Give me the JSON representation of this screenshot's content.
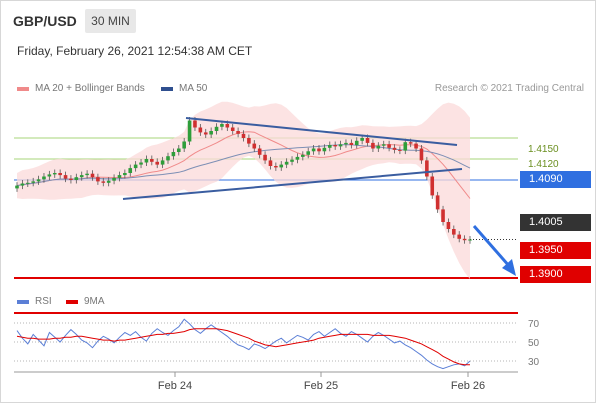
{
  "header": {
    "symbol": "GBP/USD",
    "timeframe": "30 MIN"
  },
  "timestamp": "Friday, February 26, 2021 12:54:38 AM CET",
  "legend": {
    "ma20": "MA 20 + Bollinger Bands",
    "ma50": "MA 50",
    "ma20_color": "#f08a8a",
    "ma50_color": "#2f4f8f"
  },
  "credit": "Research © 2021 Trading Central",
  "rsi_legend": {
    "rsi": "RSI",
    "ma": "9MA",
    "rsi_color": "#5b7fd6",
    "ma_color": "#e00000"
  },
  "levels": {
    "r1": "1.4150",
    "r2": "1.4120",
    "pivot": "1.4090",
    "last": "1.4005",
    "s1": "1.3950",
    "s2": "1.3900",
    "green": "#7dbf3a",
    "blue": "#2f6fe0",
    "red": "#e00000",
    "dark": "#333333"
  },
  "chart_data": {
    "type": "candlestick",
    "x_ticks": [
      "Feb 24",
      "Feb 25",
      "Feb 26"
    ],
    "price_levels": {
      "resistance": [
        1.415,
        1.412
      ],
      "pivot": 1.409,
      "last": 1.4005,
      "support": [
        1.395,
        1.39
      ]
    },
    "closes": [
      1.4082,
      1.4085,
      1.4086,
      1.4088,
      1.4091,
      1.4095,
      1.4098,
      1.41,
      1.4097,
      1.4092,
      1.409,
      1.4094,
      1.4097,
      1.4099,
      1.4094,
      1.4088,
      1.4086,
      1.4089,
      1.4093,
      1.4097,
      1.41,
      1.4107,
      1.4112,
      1.4115,
      1.412,
      1.4116,
      1.4112,
      1.4118,
      1.4124,
      1.413,
      1.4135,
      1.4145,
      1.4175,
      1.4165,
      1.4158,
      1.4155,
      1.416,
      1.4166,
      1.417,
      1.4165,
      1.416,
      1.4156,
      1.415,
      1.4142,
      1.4135,
      1.4126,
      1.4118,
      1.411,
      1.4108,
      1.4112,
      1.4116,
      1.4119,
      1.4123,
      1.4126,
      1.4131,
      1.4135,
      1.4131,
      1.4136,
      1.414,
      1.4138,
      1.4141,
      1.4143,
      1.414,
      1.4146,
      1.415,
      1.4143,
      1.4135,
      1.4139,
      1.4141,
      1.4136,
      1.4133,
      1.4132,
      1.4144,
      1.4142,
      1.4135,
      1.4118,
      1.4095,
      1.4068,
      1.4048,
      1.403,
      1.402,
      1.4012,
      1.4006,
      1.4004,
      1.4005
    ],
    "ma20_label": "MA 20 + Bollinger Bands",
    "ma50_label": "MA 50",
    "rsi": {
      "levels": [
        70,
        50,
        30
      ],
      "values": [
        62,
        54,
        48,
        58,
        52,
        46,
        60,
        55,
        50,
        57,
        63,
        58,
        52,
        49,
        44,
        51,
        56,
        53,
        49,
        55,
        60,
        57,
        61,
        55,
        51,
        59,
        64,
        60,
        57,
        62,
        66,
        74,
        69,
        63,
        59,
        64,
        68,
        64,
        60,
        56,
        51,
        47,
        45,
        42,
        48,
        46,
        43,
        47,
        51,
        54,
        49,
        53,
        57,
        55,
        52,
        58,
        61,
        56,
        60,
        64,
        59,
        56,
        61,
        58,
        54,
        50,
        56,
        60,
        57,
        53,
        49,
        51,
        47,
        44,
        40,
        36,
        31,
        27,
        24,
        22,
        24,
        26,
        27,
        25,
        30
      ],
      "ma_values": [
        56,
        55,
        54,
        54,
        53,
        53,
        53,
        54,
        54,
        55,
        55,
        56,
        56,
        55,
        54,
        53,
        52,
        52,
        51,
        52,
        52,
        53,
        54,
        55,
        56,
        57,
        58,
        58,
        59,
        59,
        60,
        61,
        63,
        64,
        64,
        64,
        64,
        64,
        63,
        62,
        60,
        58,
        56,
        54,
        51,
        49,
        47,
        46,
        45,
        46,
        47,
        48,
        49,
        50,
        51,
        52,
        54,
        55,
        56,
        57,
        58,
        58,
        58,
        58,
        58,
        58,
        57,
        57,
        57,
        57,
        56,
        55,
        54,
        52,
        50,
        48,
        45,
        42,
        39,
        35,
        32,
        29,
        27,
        26,
        26
      ]
    }
  }
}
